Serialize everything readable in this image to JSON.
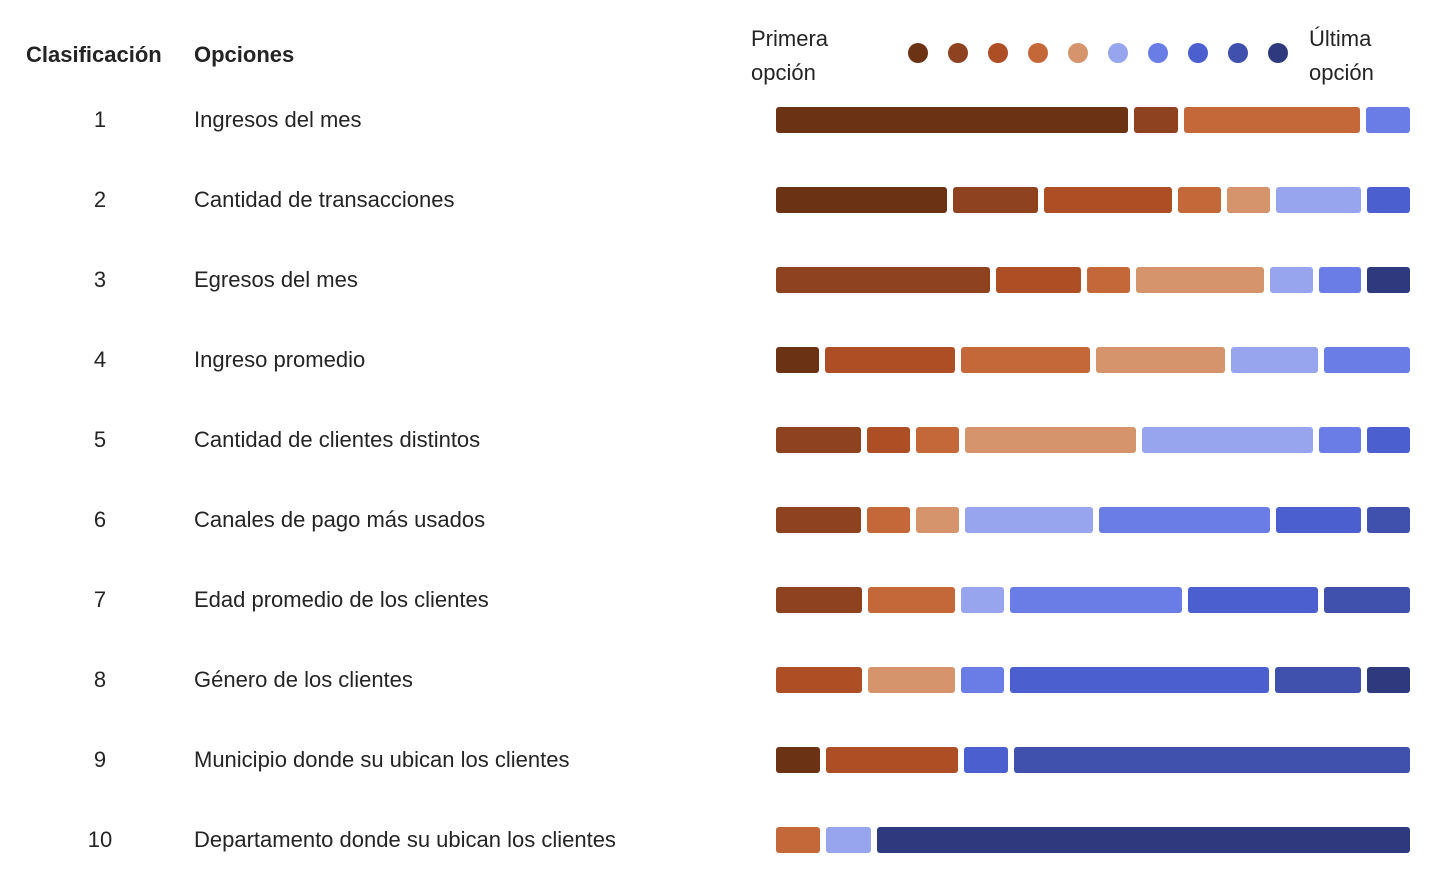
{
  "header": {
    "rank_label": "Clasificación",
    "options_label": "Opciones"
  },
  "legend": {
    "first_label": "Primera\nopción",
    "last_label": "Última\nopción",
    "colors": [
      "#6b3214",
      "#8f421f",
      "#ad4e25",
      "#c4683a",
      "#d6946d",
      "#97a4ee",
      "#6a7de6",
      "#4b5fcf",
      "#3f50ad",
      "#2e3a7d"
    ]
  },
  "chart_data": {
    "type": "bar",
    "stacked": true,
    "levels": 10,
    "rows": [
      {
        "rank": "1",
        "option": "Ingresos del mes",
        "segments": [
          {
            "level": 1,
            "value": 8
          },
          {
            "level": 2,
            "value": 1
          },
          {
            "level": 4,
            "value": 4
          },
          {
            "level": 7,
            "value": 1
          }
        ]
      },
      {
        "rank": "2",
        "option": "Cantidad de transacciones",
        "segments": [
          {
            "level": 1,
            "value": 4
          },
          {
            "level": 2,
            "value": 2
          },
          {
            "level": 3,
            "value": 3
          },
          {
            "level": 4,
            "value": 1
          },
          {
            "level": 5,
            "value": 1
          },
          {
            "level": 6,
            "value": 2
          },
          {
            "level": 8,
            "value": 1
          }
        ]
      },
      {
        "rank": "3",
        "option": "Egresos del mes",
        "segments": [
          {
            "level": 2,
            "value": 5
          },
          {
            "level": 3,
            "value": 2
          },
          {
            "level": 4,
            "value": 1
          },
          {
            "level": 5,
            "value": 3
          },
          {
            "level": 6,
            "value": 1
          },
          {
            "level": 7,
            "value": 1
          },
          {
            "level": 10,
            "value": 1
          }
        ]
      },
      {
        "rank": "4",
        "option": "Ingreso promedio",
        "segments": [
          {
            "level": 1,
            "value": 1
          },
          {
            "level": 3,
            "value": 3
          },
          {
            "level": 4,
            "value": 3
          },
          {
            "level": 5,
            "value": 3
          },
          {
            "level": 6,
            "value": 2
          },
          {
            "level": 7,
            "value": 2
          }
        ]
      },
      {
        "rank": "5",
        "option": "Cantidad de clientes distintos",
        "segments": [
          {
            "level": 2,
            "value": 2
          },
          {
            "level": 3,
            "value": 1
          },
          {
            "level": 4,
            "value": 1
          },
          {
            "level": 5,
            "value": 4
          },
          {
            "level": 6,
            "value": 4
          },
          {
            "level": 7,
            "value": 1
          },
          {
            "level": 8,
            "value": 1
          }
        ]
      },
      {
        "rank": "6",
        "option": "Canales de pago más usados",
        "segments": [
          {
            "level": 2,
            "value": 2
          },
          {
            "level": 4,
            "value": 1
          },
          {
            "level": 5,
            "value": 1
          },
          {
            "level": 6,
            "value": 3
          },
          {
            "level": 7,
            "value": 4
          },
          {
            "level": 8,
            "value": 2
          },
          {
            "level": 9,
            "value": 1
          }
        ]
      },
      {
        "rank": "7",
        "option": "Edad promedio de los clientes",
        "segments": [
          {
            "level": 2,
            "value": 2
          },
          {
            "level": 4,
            "value": 2
          },
          {
            "level": 6,
            "value": 1
          },
          {
            "level": 7,
            "value": 4
          },
          {
            "level": 8,
            "value": 3
          },
          {
            "level": 9,
            "value": 2
          }
        ]
      },
      {
        "rank": "8",
        "option": "Género de los clientes",
        "segments": [
          {
            "level": 3,
            "value": 2
          },
          {
            "level": 5,
            "value": 2
          },
          {
            "level": 7,
            "value": 1
          },
          {
            "level": 8,
            "value": 6
          },
          {
            "level": 9,
            "value": 2
          },
          {
            "level": 10,
            "value": 1
          }
        ]
      },
      {
        "rank": "9",
        "option": "Municipio donde su ubican los clientes",
        "segments": [
          {
            "level": 1,
            "value": 1
          },
          {
            "level": 3,
            "value": 3
          },
          {
            "level": 8,
            "value": 1
          },
          {
            "level": 9,
            "value": 9
          }
        ]
      },
      {
        "rank": "10",
        "option": "Departamento donde su ubican los clientes",
        "segments": [
          {
            "level": 4,
            "value": 1
          },
          {
            "level": 6,
            "value": 1
          },
          {
            "level": 10,
            "value": 12
          }
        ]
      }
    ]
  }
}
